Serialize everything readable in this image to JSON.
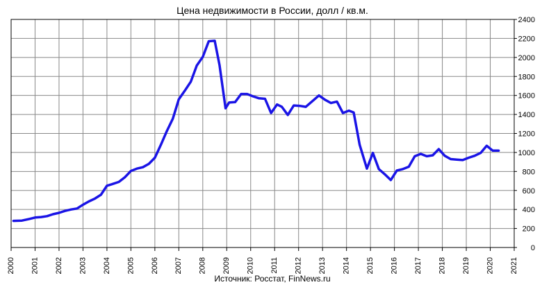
{
  "chart_data": {
    "type": "line",
    "title": "Цена недвижимости в России, долл / кв.м.",
    "source": "Источник: Росстат, FinNews.ru",
    "xlabel": "",
    "ylabel": "",
    "xlim": [
      2000,
      2021
    ],
    "ylim": [
      0,
      2400
    ],
    "x_ticks": [
      2000,
      2001,
      2002,
      2003,
      2004,
      2005,
      2006,
      2007,
      2008,
      2009,
      2010,
      2011,
      2012,
      2013,
      2014,
      2015,
      2016,
      2017,
      2018,
      2019,
      2020,
      2021
    ],
    "y_ticks": [
      0,
      200,
      400,
      600,
      800,
      1000,
      1200,
      1400,
      1600,
      1800,
      2000,
      2200,
      2400
    ],
    "y_axis_side": "right",
    "grid": true,
    "line_color": "#1a14e6",
    "series": [
      {
        "x": [
          2000.1,
          2000.45,
          2000.75,
          2001.0,
          2001.25,
          2001.5,
          2001.75,
          2002.0,
          2002.25,
          2002.5,
          2002.75,
          2003.0,
          2003.25,
          2003.5,
          2003.75,
          2004.0,
          2004.2,
          2004.5,
          2004.75,
          2005.0,
          2005.25,
          2005.5,
          2005.75,
          2006.0,
          2006.25,
          2006.5,
          2006.75,
          2007.0,
          2007.25,
          2007.5,
          2007.75,
          2008.0,
          2008.25,
          2008.5,
          2008.7,
          2008.95,
          2009.1,
          2009.35,
          2009.6,
          2009.85,
          2010.1,
          2010.35,
          2010.6,
          2010.85,
          2011.1,
          2011.3,
          2011.55,
          2011.8,
          2012.05,
          2012.3,
          2012.6,
          2012.85,
          2013.1,
          2013.35,
          2013.6,
          2013.85,
          2014.1,
          2014.3,
          2014.55,
          2014.85,
          2015.1,
          2015.35,
          2015.6,
          2015.85,
          2016.1,
          2016.35,
          2016.6,
          2016.85,
          2017.1,
          2017.35,
          2017.6,
          2017.85,
          2018.1,
          2018.35,
          2018.6,
          2018.85,
          2019.1,
          2019.35,
          2019.6,
          2019.85,
          2020.1,
          2020.35
        ],
        "y": [
          280,
          283,
          300,
          315,
          320,
          330,
          350,
          365,
          385,
          400,
          410,
          450,
          485,
          515,
          555,
          650,
          665,
          690,
          740,
          805,
          830,
          845,
          880,
          945,
          1080,
          1225,
          1355,
          1560,
          1650,
          1745,
          1915,
          2005,
          2170,
          2175,
          1920,
          1465,
          1525,
          1530,
          1615,
          1615,
          1590,
          1570,
          1565,
          1415,
          1505,
          1480,
          1395,
          1495,
          1490,
          1480,
          1545,
          1600,
          1555,
          1520,
          1535,
          1415,
          1440,
          1420,
          1080,
          830,
          995,
          825,
          770,
          710,
          810,
          825,
          850,
          960,
          985,
          960,
          970,
          1035,
          965,
          930,
          925,
          920,
          945,
          965,
          995,
          1070,
          1020,
          1020
        ]
      }
    ]
  }
}
